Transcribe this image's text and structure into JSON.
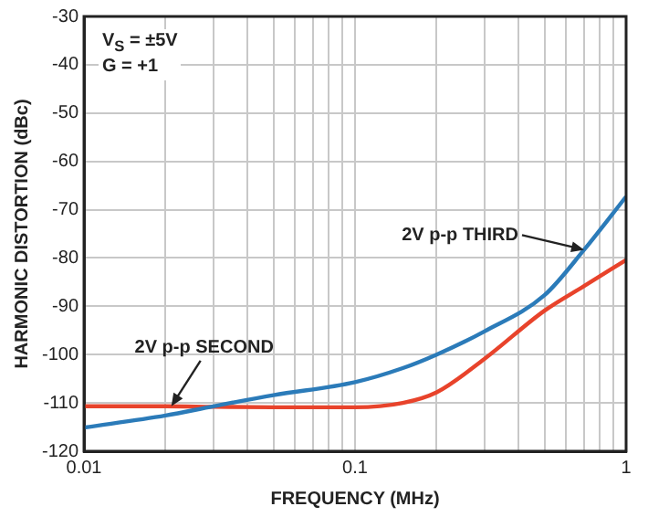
{
  "chart_data": {
    "type": "line",
    "xlabel": "FREQUENCY (MHz)",
    "ylabel": "HARMONIC DISTORTION (dBc)",
    "x": [
      0.01,
      0.02,
      0.03,
      0.05,
      0.1,
      0.15,
      0.2,
      0.3,
      0.5,
      0.7,
      1
    ],
    "series": [
      {
        "color": "#2b7bb9",
        "values": [
          -115.1,
          -112.6,
          -110.7,
          -108.4,
          -105.7,
          -102.8,
          -100.0,
          -95.2,
          -87.7,
          -78.3,
          -67.3
        ]
      },
      {
        "color": "#e8432b",
        "values": [
          -110.7,
          -110.7,
          -110.8,
          -110.9,
          -110.9,
          -110.0,
          -107.8,
          -100.9,
          -90.9,
          -85.8,
          -80.4
        ]
      }
    ],
    "log": "x",
    "xlim": [
      0.01,
      1
    ],
    "xticks": [
      0.01,
      {
        "value": 0.02,
        "label": null
      },
      {
        "value": 0.03,
        "label": null
      },
      {
        "value": 0.04,
        "label": null
      },
      {
        "value": 0.05,
        "label": null
      },
      {
        "value": 0.06,
        "label": null
      },
      {
        "value": 0.07,
        "label": null
      },
      {
        "value": 0.08,
        "label": null
      },
      {
        "value": 0.09,
        "label": null
      },
      0.1,
      {
        "value": 0.2,
        "label": null
      },
      {
        "value": 0.3,
        "label": null
      },
      {
        "value": 0.4,
        "label": null
      },
      {
        "value": 0.5,
        "label": null
      },
      {
        "value": 0.6,
        "label": null
      },
      {
        "value": 0.7,
        "label": null
      },
      {
        "value": 0.8,
        "label": null
      },
      {
        "value": 0.9,
        "label": null
      },
      1
    ],
    "ylim": [
      -120,
      -30
    ],
    "yticks": [
      -120,
      -110,
      -100,
      -90,
      -80,
      -70,
      -60,
      -50,
      -40,
      -30
    ],
    "grid": true,
    "legend": false,
    "marker": "none",
    "line_style": "solid",
    "annotations": [
      "V$_{S}$ = ±5V",
      "G = +1",
      {
        "text": "2V p-p THIRD",
        "x": 0.7,
        "y": -78.3
      },
      {
        "text": "2V p-p SECOND",
        "x": 0.021,
        "y": -110.7
      }
    ]
  }
}
